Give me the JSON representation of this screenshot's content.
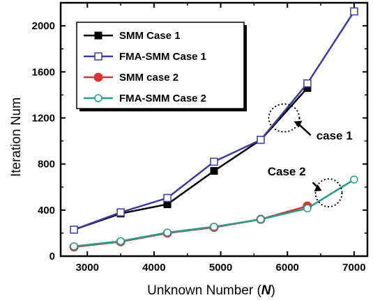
{
  "chart_data": {
    "type": "line",
    "title": "",
    "xlabel_main": "Unknown Number (",
    "xlabel_var": "N",
    "xlabel_close": ")",
    "ylabel": "Iteration Num",
    "xlim": [
      2600,
      7200
    ],
    "ylim": [
      0,
      2200
    ],
    "xticks": [
      3000,
      4000,
      5000,
      6000,
      7000
    ],
    "yticks": [
      0,
      400,
      800,
      1200,
      1600,
      2000
    ],
    "grid": false,
    "legend_position": "top-left",
    "series": [
      {
        "name": "SMM Case 1",
        "color": "#000000",
        "marker": "filled-square",
        "x": [
          2800,
          3500,
          4200,
          4900,
          5600,
          6300
        ],
        "y": [
          230,
          370,
          450,
          740,
          1010,
          1460
        ]
      },
      {
        "name": "FMA-SMM Case 1",
        "color": "#3a3aa0",
        "marker": "open-square",
        "x": [
          2800,
          3500,
          4200,
          4900,
          5600,
          6300,
          7000
        ],
        "y": [
          230,
          380,
          505,
          820,
          1010,
          1500,
          2125
        ]
      },
      {
        "name": "SMM case 2",
        "color": "#e03030",
        "marker": "filled-circle",
        "x": [
          2800,
          3500,
          4200,
          4900,
          5600,
          6300
        ],
        "y": [
          80,
          125,
          200,
          250,
          320,
          435
        ]
      },
      {
        "name": "FMA-SMM Case 2",
        "color": "#1fa08c",
        "marker": "open-circle",
        "x": [
          2800,
          3500,
          4200,
          4900,
          5600,
          6300,
          7000
        ],
        "y": [
          85,
          130,
          205,
          255,
          320,
          415,
          665
        ]
      }
    ],
    "annotations": [
      {
        "text": "case 1",
        "circle_at": [
          5950,
          1200
        ],
        "arrow_from": [
          6350,
          1050
        ]
      },
      {
        "text": "Case 2",
        "circle_at": [
          6620,
          550
        ],
        "arrow_from": [
          6380,
          640
        ]
      }
    ]
  }
}
